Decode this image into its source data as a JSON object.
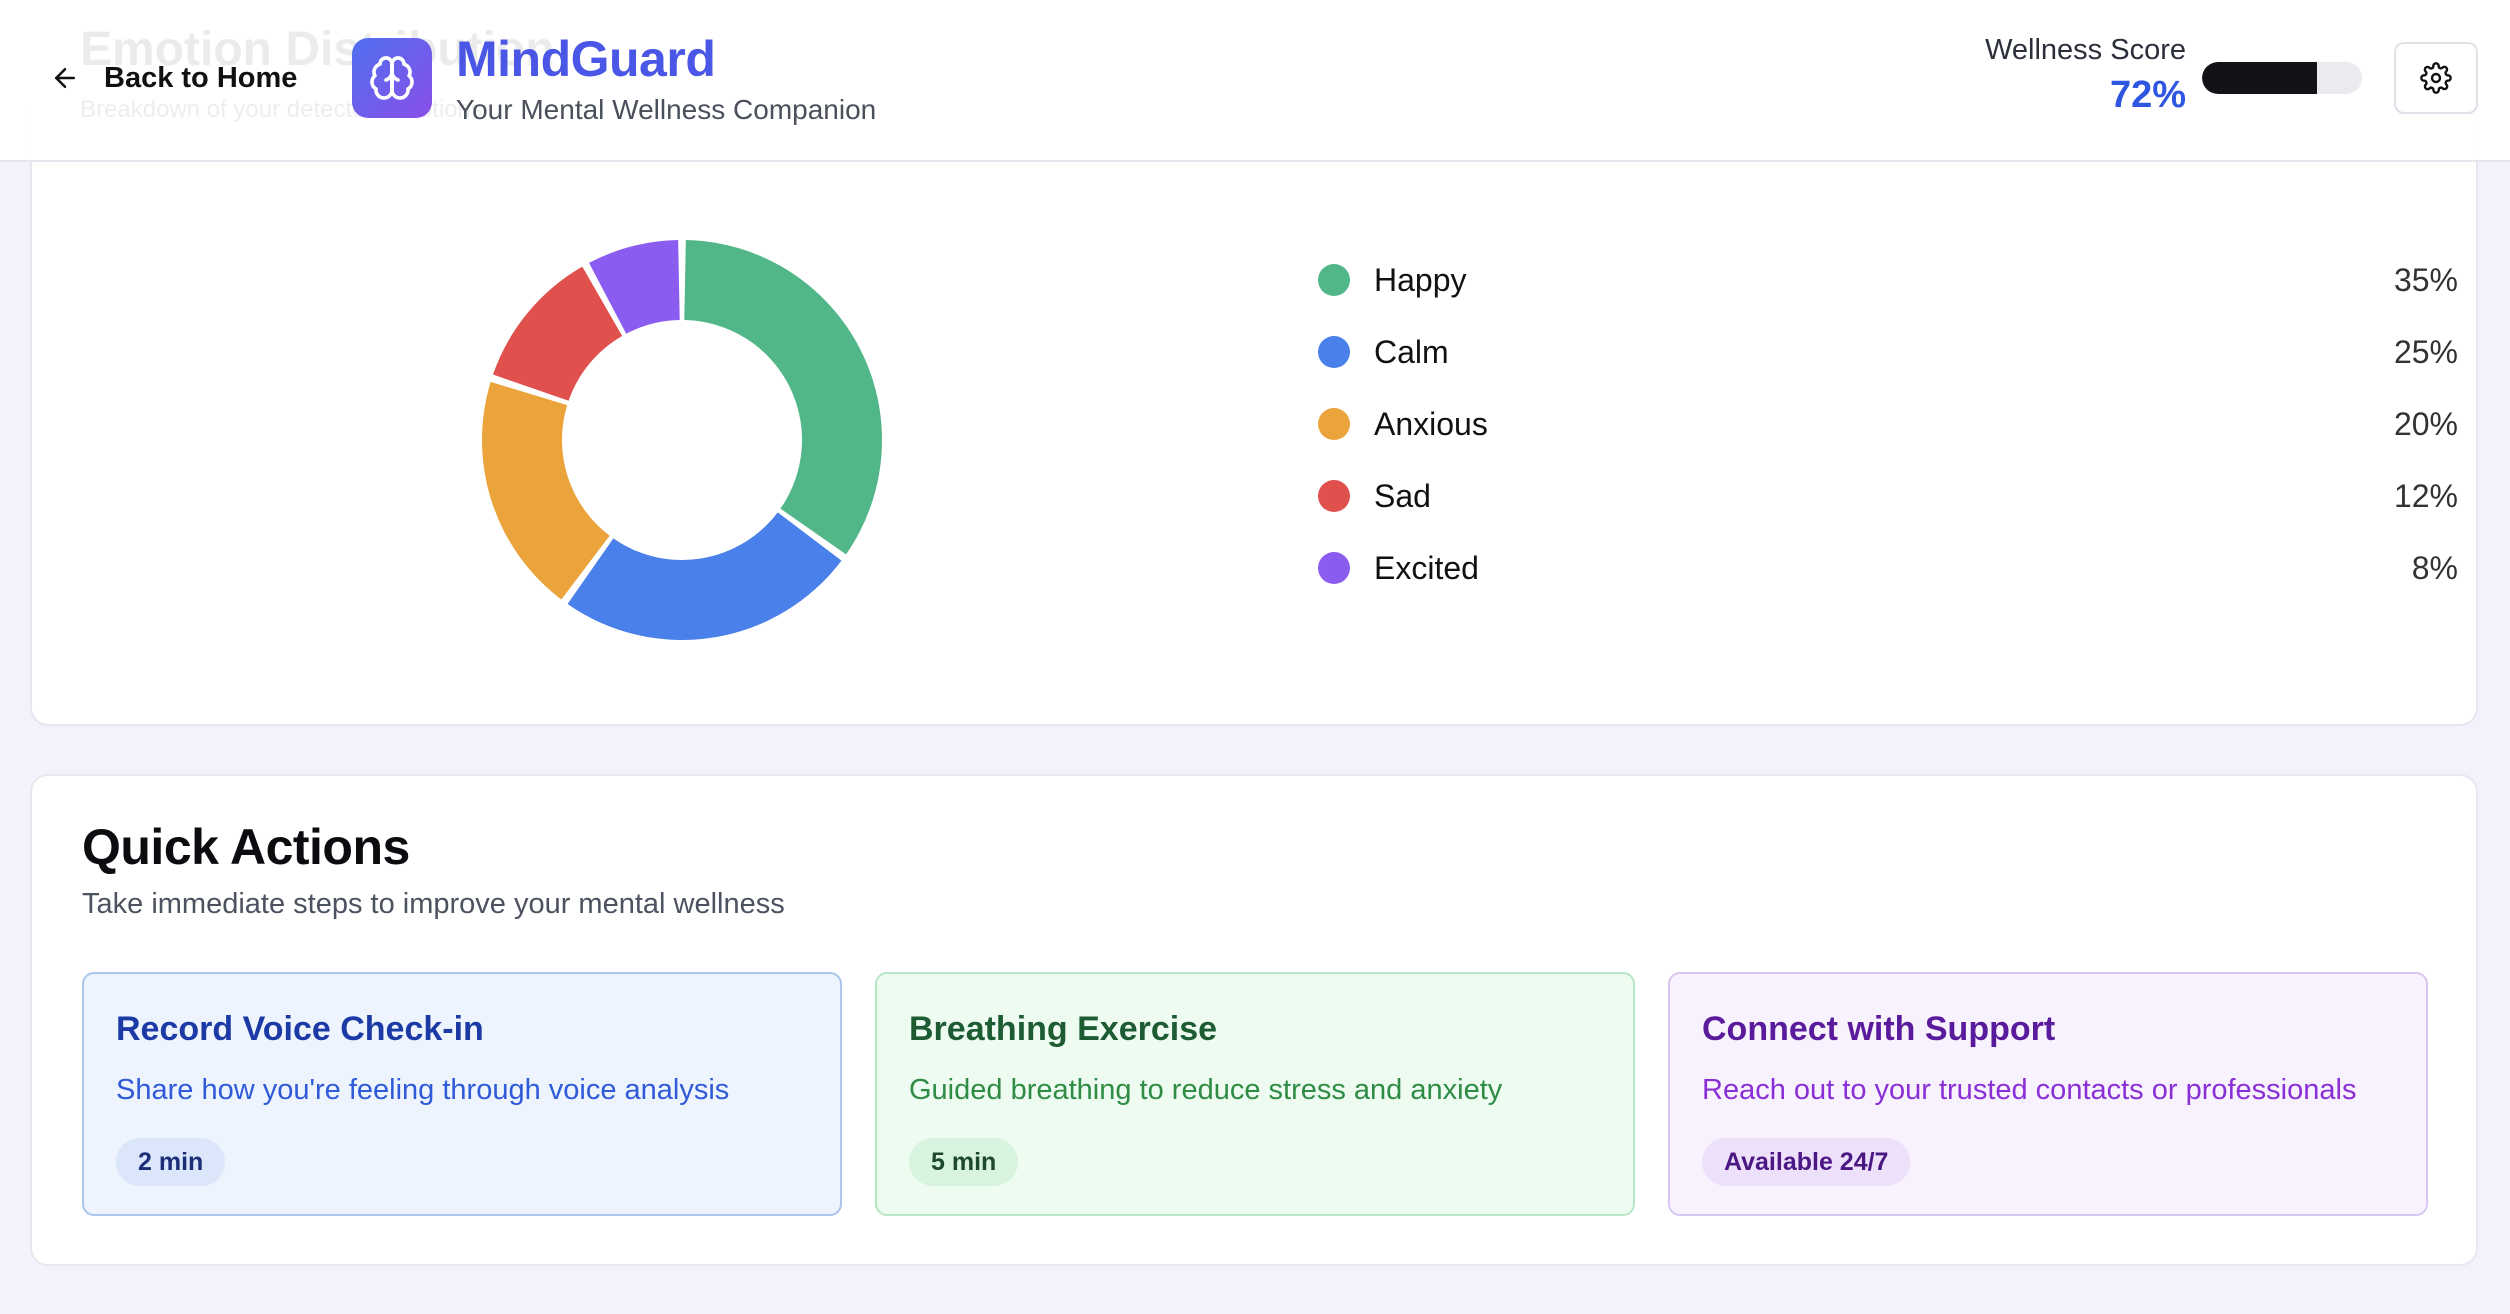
{
  "header": {
    "ghost_title": "Emotion Distribution",
    "ghost_subtitle": "Breakdown of your detected emotions",
    "back_label": "Back to Home",
    "brand_name": "MindGuard",
    "brand_tagline": "Your Mental Wellness Companion",
    "wellness_label": "Wellness Score",
    "wellness_value": "72%",
    "wellness_fraction": 0.72
  },
  "colors": {
    "accent": "#4a56e6",
    "happy": "#52b788",
    "calm": "#4a80ea",
    "anxious": "#eba33c",
    "sad": "#e0504c",
    "excited": "#8a5cf0"
  },
  "chart_data": {
    "type": "pie",
    "donut": true,
    "categories": [
      "Happy",
      "Calm",
      "Anxious",
      "Sad",
      "Excited"
    ],
    "values": [
      35,
      25,
      20,
      12,
      8
    ],
    "value_labels": [
      "35%",
      "25%",
      "20%",
      "12%",
      "8%"
    ],
    "colors": [
      "#52b788",
      "#4a80ea",
      "#eba33c",
      "#e0504c",
      "#8a5cf0"
    ],
    "legend_position": "right"
  },
  "quick_actions": {
    "title": "Quick Actions",
    "subtitle": "Take immediate steps to improve your mental wellness",
    "items": [
      {
        "title": "Record Voice Check-in",
        "description": "Share how you're feeling through voice analysis",
        "badge": "2 min"
      },
      {
        "title": "Breathing Exercise",
        "description": "Guided breathing to reduce stress and anxiety",
        "badge": "5 min"
      },
      {
        "title": "Connect with Support",
        "description": "Reach out to your trusted contacts or professionals",
        "badge": "Available 24/7"
      }
    ]
  },
  "icons": {
    "back": "arrow-left-icon",
    "logo": "brain-icon",
    "settings": "gear-icon"
  }
}
